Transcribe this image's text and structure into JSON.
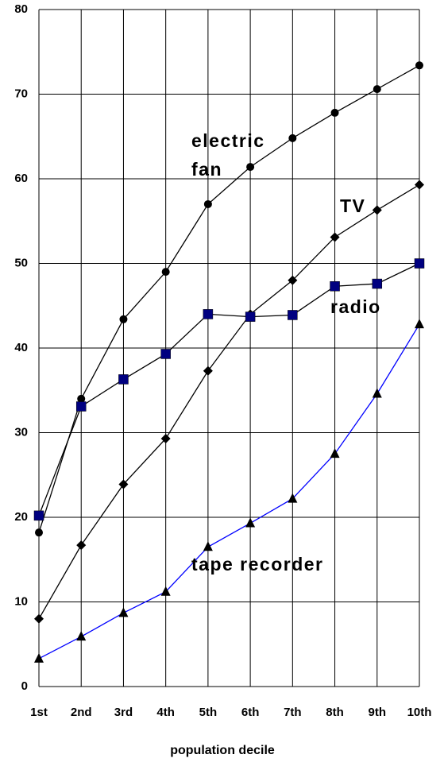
{
  "chart_data": {
    "type": "line",
    "x_label": "population decile",
    "categories": [
      "1st",
      "2nd",
      "3rd",
      "4th",
      "5th",
      "6th",
      "7th",
      "8th",
      "9th",
      "10th"
    ],
    "series": [
      {
        "name": "electric fan",
        "color": "#000000",
        "marker": "circle",
        "marker_color": "#000000",
        "values": [
          18.2,
          34,
          43.4,
          49,
          57,
          61.4,
          64.8,
          67.8,
          70.6,
          73.4
        ]
      },
      {
        "name": "TV",
        "color": "#000000",
        "marker": "diamond",
        "marker_color": "#000000",
        "values": [
          8,
          16.7,
          23.9,
          29.3,
          37.3,
          44,
          48,
          53.1,
          56.3,
          59.3
        ]
      },
      {
        "name": "radio",
        "color": "#000000",
        "marker": "square",
        "marker_color": "#000080",
        "values": [
          20.2,
          33.1,
          36.3,
          39.3,
          44,
          43.7,
          43.9,
          47.3,
          47.6,
          50
        ]
      },
      {
        "name": "tape recorder",
        "color": "#0000ff",
        "marker": "triangle",
        "marker_color": "#000000",
        "values": [
          3.3,
          5.9,
          8.7,
          11.2,
          16.5,
          19.3,
          22.2,
          27.5,
          34.6,
          42.8
        ]
      }
    ],
    "ylim": [
      0,
      80
    ],
    "yticks": [
      0,
      10,
      20,
      30,
      40,
      50,
      60,
      70,
      80
    ],
    "grid": true
  }
}
